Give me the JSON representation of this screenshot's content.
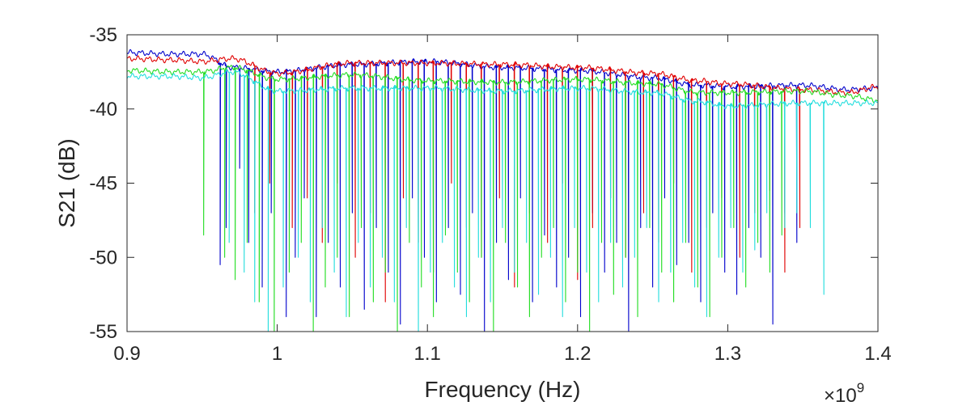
{
  "chart_data": {
    "type": "line",
    "title": "",
    "xlabel": "Frequency (Hz)",
    "ylabel": "S21 (dB)",
    "x_exponent_label": "×10",
    "x_exponent_power": "9",
    "xlim": [
      0.9,
      1.4
    ],
    "ylim": [
      -55,
      -35
    ],
    "x_scale_factor": 1000000000,
    "xticks": [
      0.9,
      1,
      1.1,
      1.2,
      1.3,
      1.4
    ],
    "xtick_labels": [
      "0.9",
      "1",
      "1.1",
      "1.2",
      "1.3",
      "1.4"
    ],
    "yticks": [
      -55,
      -50,
      -45,
      -40,
      -35
    ],
    "ytick_labels": [
      "-55",
      "-50",
      "-45",
      "-40",
      "-35"
    ],
    "grid": false,
    "legend": "none",
    "series": [
      {
        "color": "#0000cc",
        "baseline": [
          [
            0.9,
            -36.2
          ],
          [
            0.93,
            -36.3
          ],
          [
            0.95,
            -36.3
          ],
          [
            0.97,
            -37.2
          ],
          [
            1.0,
            -37.5
          ],
          [
            1.05,
            -37.0
          ],
          [
            1.1,
            -36.8
          ],
          [
            1.15,
            -37.2
          ],
          [
            1.2,
            -37.4
          ],
          [
            1.25,
            -37.9
          ],
          [
            1.28,
            -38.4
          ],
          [
            1.3,
            -38.5
          ],
          [
            1.35,
            -38.4
          ],
          [
            1.38,
            -38.7
          ],
          [
            1.4,
            -38.6
          ]
        ],
        "dips": [
          [
            0.962,
            -50.5
          ],
          [
            0.966,
            -48
          ],
          [
            0.975,
            -44
          ],
          [
            0.981,
            -49
          ],
          [
            0.99,
            -52
          ],
          [
            0.996,
            -47
          ],
          [
            1.006,
            -54
          ],
          [
            1.012,
            -50
          ],
          [
            1.018,
            -46
          ],
          [
            1.026,
            -54
          ],
          [
            1.034,
            -49
          ],
          [
            1.042,
            -52
          ],
          [
            1.05,
            -47
          ],
          [
            1.058,
            -53.5
          ],
          [
            1.066,
            -48
          ],
          [
            1.074,
            -51
          ],
          [
            1.082,
            -54.5
          ],
          [
            1.09,
            -46
          ],
          [
            1.098,
            -50
          ],
          [
            1.106,
            -53
          ],
          [
            1.114,
            -48
          ],
          [
            1.122,
            -52.5
          ],
          [
            1.13,
            -47
          ],
          [
            1.138,
            -55
          ],
          [
            1.146,
            -49
          ],
          [
            1.154,
            -51.5
          ],
          [
            1.162,
            -46
          ],
          [
            1.17,
            -53
          ],
          [
            1.178,
            -48.5
          ],
          [
            1.186,
            -52
          ],
          [
            1.194,
            -50
          ],
          [
            1.202,
            -54
          ],
          [
            1.21,
            -47
          ],
          [
            1.218,
            -51
          ],
          [
            1.226,
            -49
          ],
          [
            1.234,
            -55
          ],
          [
            1.242,
            -48
          ],
          [
            1.25,
            -52
          ],
          [
            1.258,
            -46
          ],
          [
            1.266,
            -50.5
          ],
          [
            1.274,
            -49
          ],
          [
            1.282,
            -53
          ],
          [
            1.29,
            -47
          ],
          [
            1.298,
            -51
          ],
          [
            1.306,
            -52.5
          ],
          [
            1.314,
            -48
          ],
          [
            1.322,
            -50
          ],
          [
            1.33,
            -54.5
          ],
          [
            1.338,
            -47
          ],
          [
            1.346,
            -49
          ]
        ]
      },
      {
        "color": "#e00000",
        "baseline": [
          [
            0.9,
            -36.6
          ],
          [
            0.93,
            -36.7
          ],
          [
            0.95,
            -36.8
          ],
          [
            0.97,
            -36.6
          ],
          [
            1.0,
            -37.6
          ],
          [
            1.05,
            -36.9
          ],
          [
            1.1,
            -36.9
          ],
          [
            1.15,
            -37.0
          ],
          [
            1.2,
            -37.2
          ],
          [
            1.25,
            -37.6
          ],
          [
            1.28,
            -38.1
          ],
          [
            1.3,
            -38.3
          ],
          [
            1.35,
            -38.7
          ],
          [
            1.38,
            -38.9
          ],
          [
            1.4,
            -38.5
          ]
        ],
        "dips": [
          [
            0.985,
            -47
          ],
          [
            0.995,
            -45
          ],
          [
            1.01,
            -48
          ],
          [
            1.02,
            -46
          ],
          [
            1.03,
            -49
          ],
          [
            1.04,
            -45
          ],
          [
            1.052,
            -50
          ],
          [
            1.062,
            -47
          ],
          [
            1.072,
            -53
          ],
          [
            1.084,
            -46
          ],
          [
            1.094,
            -49
          ],
          [
            1.104,
            -51
          ],
          [
            1.116,
            -45
          ],
          [
            1.126,
            -48
          ],
          [
            1.136,
            -50
          ],
          [
            1.148,
            -46
          ],
          [
            1.158,
            -52
          ],
          [
            1.168,
            -47
          ],
          [
            1.18,
            -49
          ],
          [
            1.19,
            -45
          ],
          [
            1.2,
            -51.5
          ],
          [
            1.21,
            -48
          ],
          [
            1.222,
            -46
          ],
          [
            1.232,
            -50
          ],
          [
            1.244,
            -47
          ],
          [
            1.254,
            -49
          ],
          [
            1.264,
            -45
          ],
          [
            1.276,
            -51
          ],
          [
            1.286,
            -48
          ],
          [
            1.296,
            -46
          ],
          [
            1.308,
            -50
          ],
          [
            1.318,
            -47
          ],
          [
            1.328,
            -45.5
          ],
          [
            1.338,
            -51
          ],
          [
            1.348,
            -48
          ]
        ]
      },
      {
        "color": "#22dd22",
        "baseline": [
          [
            0.9,
            -37.4
          ],
          [
            0.93,
            -37.5
          ],
          [
            0.95,
            -37.5
          ],
          [
            0.97,
            -37.2
          ],
          [
            1.0,
            -38.0
          ],
          [
            1.05,
            -37.7
          ],
          [
            1.1,
            -38.1
          ],
          [
            1.15,
            -38.2
          ],
          [
            1.2,
            -38.0
          ],
          [
            1.25,
            -38.3
          ],
          [
            1.28,
            -38.9
          ],
          [
            1.3,
            -38.9
          ],
          [
            1.35,
            -38.8
          ],
          [
            1.38,
            -39.1
          ],
          [
            1.4,
            -39.4
          ]
        ],
        "dips": [
          [
            0.951,
            -48.5
          ],
          [
            0.965,
            -50
          ],
          [
            0.972,
            -51.5
          ],
          [
            0.98,
            -49
          ],
          [
            0.988,
            -53
          ],
          [
            0.998,
            -55
          ],
          [
            1.008,
            -51
          ],
          [
            1.016,
            -49
          ],
          [
            1.024,
            -55
          ],
          [
            1.032,
            -52
          ],
          [
            1.04,
            -50
          ],
          [
            1.048,
            -54
          ],
          [
            1.056,
            -48
          ],
          [
            1.064,
            -53
          ],
          [
            1.072,
            -51
          ],
          [
            1.08,
            -55
          ],
          [
            1.088,
            -49
          ],
          [
            1.096,
            -52
          ],
          [
            1.104,
            -54
          ],
          [
            1.112,
            -48.5
          ],
          [
            1.12,
            -51
          ],
          [
            1.128,
            -53
          ],
          [
            1.136,
            -50
          ],
          [
            1.144,
            -55
          ],
          [
            1.152,
            -49
          ],
          [
            1.16,
            -52
          ],
          [
            1.168,
            -54
          ],
          [
            1.176,
            -50
          ],
          [
            1.184,
            -48
          ],
          [
            1.192,
            -53
          ],
          [
            1.2,
            -51
          ],
          [
            1.208,
            -55
          ],
          [
            1.216,
            -49
          ],
          [
            1.224,
            -52.5
          ],
          [
            1.232,
            -50
          ],
          [
            1.24,
            -54
          ],
          [
            1.248,
            -48
          ],
          [
            1.256,
            -51
          ],
          [
            1.264,
            -53
          ],
          [
            1.272,
            -49
          ],
          [
            1.28,
            -52
          ],
          [
            1.288,
            -54
          ],
          [
            1.296,
            -50
          ],
          [
            1.304,
            -48
          ],
          [
            1.312,
            -52
          ],
          [
            1.32,
            -49
          ],
          [
            1.328,
            -51
          ],
          [
            1.336,
            -48.5
          ]
        ]
      },
      {
        "color": "#22dddd",
        "baseline": [
          [
            0.9,
            -37.8
          ],
          [
            0.93,
            -37.8
          ],
          [
            0.95,
            -37.9
          ],
          [
            0.97,
            -37.5
          ],
          [
            1.0,
            -38.8
          ],
          [
            1.05,
            -38.6
          ],
          [
            1.1,
            -38.6
          ],
          [
            1.15,
            -38.8
          ],
          [
            1.2,
            -38.6
          ],
          [
            1.25,
            -38.9
          ],
          [
            1.28,
            -39.5
          ],
          [
            1.3,
            -39.8
          ],
          [
            1.35,
            -39.6
          ],
          [
            1.38,
            -39.6
          ],
          [
            1.4,
            -39.6
          ]
        ],
        "dips": [
          [
            0.968,
            -49
          ],
          [
            0.978,
            -51
          ],
          [
            0.985,
            -53
          ],
          [
            0.994,
            -55
          ],
          [
            1.004,
            -52
          ],
          [
            1.014,
            -50
          ],
          [
            1.022,
            -53
          ],
          [
            1.03,
            -48
          ],
          [
            1.038,
            -51
          ],
          [
            1.046,
            -54
          ],
          [
            1.054,
            -49
          ],
          [
            1.062,
            -52
          ],
          [
            1.07,
            -50
          ],
          [
            1.078,
            -53
          ],
          [
            1.086,
            -48
          ],
          [
            1.094,
            -55
          ],
          [
            1.102,
            -51
          ],
          [
            1.11,
            -49
          ],
          [
            1.118,
            -52
          ],
          [
            1.126,
            -54
          ],
          [
            1.134,
            -50
          ],
          [
            1.142,
            -53
          ],
          [
            1.15,
            -48
          ],
          [
            1.158,
            -51
          ],
          [
            1.166,
            -49
          ],
          [
            1.174,
            -52.5
          ],
          [
            1.182,
            -50
          ],
          [
            1.19,
            -54
          ],
          [
            1.198,
            -48
          ],
          [
            1.206,
            -51
          ],
          [
            1.214,
            -53
          ],
          [
            1.222,
            -49
          ],
          [
            1.23,
            -52
          ],
          [
            1.238,
            -50
          ],
          [
            1.246,
            -48
          ],
          [
            1.254,
            -53
          ],
          [
            1.262,
            -51
          ],
          [
            1.27,
            -49
          ],
          [
            1.278,
            -52
          ],
          [
            1.286,
            -54
          ],
          [
            1.294,
            -50
          ],
          [
            1.302,
            -48
          ],
          [
            1.31,
            -51
          ],
          [
            1.318,
            -49.5
          ],
          [
            1.326,
            -47
          ],
          [
            1.338,
            -48
          ],
          [
            1.346,
            -47
          ],
          [
            1.355,
            -48
          ],
          [
            1.364,
            -52.5
          ]
        ]
      }
    ]
  }
}
